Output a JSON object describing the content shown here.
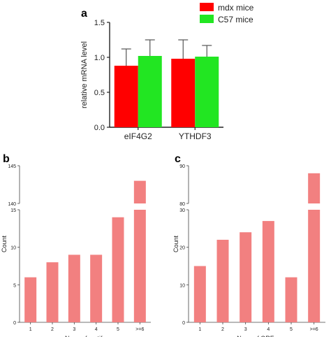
{
  "panels": {
    "a": "a",
    "b": "b",
    "c": "c"
  },
  "chart_data": [
    {
      "type": "bar",
      "panel": "a",
      "categories": [
        "eIF4G2",
        "YTHDF3"
      ],
      "series": [
        {
          "name": "mdx mice",
          "color": "#ff0000",
          "values": [
            0.88,
            0.98
          ],
          "errors": [
            0.24,
            0.27
          ]
        },
        {
          "name": "C57 mice",
          "color": "#22e622",
          "values": [
            1.02,
            1.01
          ],
          "errors": [
            0.23,
            0.16
          ]
        }
      ],
      "ylabel": "relative mRNA level",
      "xlabel": "",
      "ylim": [
        0,
        1.5
      ],
      "yticks": [
        "0.0",
        "0.5",
        "1.0",
        "1.5"
      ],
      "legend": "top-right"
    },
    {
      "type": "bar",
      "panel": "b",
      "color": "#f28080",
      "categories": [
        "1",
        "2",
        "3",
        "4",
        "5",
        ">=6"
      ],
      "values": [
        6,
        8,
        9,
        9,
        14,
        143
      ],
      "axis_break": {
        "lower": [
          0,
          15
        ],
        "upper": [
          140,
          145
        ]
      },
      "yticks_lower": [
        "0",
        "5",
        "10",
        "15"
      ],
      "yticks_upper": [
        "140",
        "145"
      ],
      "xlabel": "Num. of motifs",
      "ylabel": "Count"
    },
    {
      "type": "bar",
      "panel": "c",
      "color": "#f28080",
      "categories": [
        "1",
        "2",
        "3",
        "4",
        "5",
        ">=6"
      ],
      "values": [
        15,
        22,
        24,
        27,
        12,
        88
      ],
      "axis_break": {
        "lower": [
          0,
          30
        ],
        "upper": [
          80,
          90
        ]
      },
      "yticks_lower": [
        "0",
        "10",
        "20",
        "30"
      ],
      "yticks_upper": [
        "80",
        "90"
      ],
      "xlabel": "Num. of ORFs",
      "ylabel": "Count"
    }
  ]
}
